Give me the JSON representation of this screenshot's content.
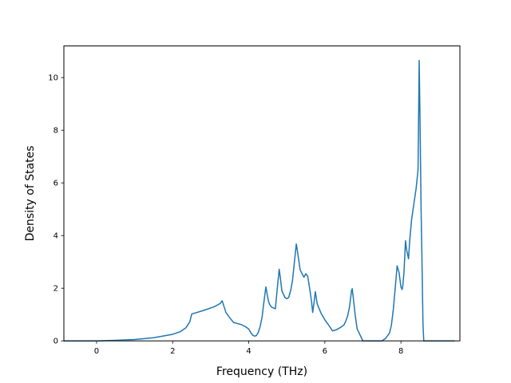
{
  "chart_data": {
    "type": "line",
    "title": "",
    "xlabel": "Frequency (THz)",
    "ylabel": "Density of States",
    "xlim": [
      -0.86,
      9.55
    ],
    "ylim": [
      0,
      11.2
    ],
    "xticks": [
      "0",
      "2",
      "4",
      "6",
      "8"
    ],
    "yticks": [
      "0",
      "2",
      "4",
      "6",
      "8",
      "10"
    ],
    "grid": false,
    "series": [
      {
        "color": "#1f77b4",
        "x": [
          -0.86,
          0.0,
          0.5,
          1.0,
          1.5,
          2.0,
          2.2,
          2.35,
          2.45,
          2.5,
          2.8,
          3.1,
          3.25,
          3.3,
          3.35,
          3.4,
          3.5,
          3.6,
          3.7,
          3.8,
          3.9,
          4.0,
          4.05,
          4.1,
          4.15,
          4.2,
          4.25,
          4.3,
          4.35,
          4.4,
          4.45,
          4.48,
          4.52,
          4.55,
          4.6,
          4.7,
          4.75,
          4.8,
          4.83,
          4.87,
          4.95,
          5.0,
          5.05,
          5.1,
          5.15,
          5.2,
          5.25,
          5.28,
          5.32,
          5.35,
          5.4,
          5.45,
          5.5,
          5.55,
          5.6,
          5.65,
          5.68,
          5.72,
          5.75,
          5.8,
          5.9,
          6.0,
          6.1,
          6.2,
          6.3,
          6.4,
          6.5,
          6.55,
          6.6,
          6.65,
          6.7,
          6.72,
          6.75,
          6.8,
          6.85,
          6.95,
          7.0,
          7.3,
          7.5,
          7.6,
          7.7,
          7.75,
          7.8,
          7.85,
          7.9,
          7.95,
          8.0,
          8.03,
          8.05,
          8.08,
          8.12,
          8.15,
          8.2,
          8.23,
          8.28,
          8.35,
          8.4,
          8.45,
          8.48,
          8.5,
          8.53,
          8.55,
          8.58,
          8.6,
          9.0,
          9.4
        ],
        "y": [
          0.0,
          0.0,
          0.02,
          0.05,
          0.12,
          0.25,
          0.35,
          0.5,
          0.72,
          1.02,
          1.15,
          1.3,
          1.42,
          1.52,
          1.3,
          1.08,
          0.88,
          0.7,
          0.66,
          0.62,
          0.55,
          0.45,
          0.32,
          0.22,
          0.18,
          0.2,
          0.32,
          0.55,
          0.9,
          1.5,
          2.05,
          1.8,
          1.5,
          1.38,
          1.28,
          1.22,
          2.0,
          2.72,
          2.4,
          1.9,
          1.65,
          1.6,
          1.65,
          1.9,
          2.3,
          3.0,
          3.68,
          3.4,
          3.0,
          2.7,
          2.55,
          2.42,
          2.55,
          2.45,
          2.0,
          1.5,
          1.08,
          1.5,
          1.87,
          1.4,
          1.05,
          0.8,
          0.6,
          0.38,
          0.42,
          0.5,
          0.6,
          0.75,
          0.95,
          1.3,
          1.9,
          1.98,
          1.6,
          0.95,
          0.45,
          0.15,
          0.0,
          0.0,
          0.0,
          0.1,
          0.3,
          0.6,
          1.2,
          2.0,
          2.85,
          2.6,
          2.05,
          1.95,
          2.1,
          2.6,
          3.8,
          3.45,
          3.12,
          3.8,
          4.6,
          5.3,
          5.8,
          6.5,
          10.65,
          8.6,
          5.0,
          3.35,
          0.6,
          0.0,
          0.0,
          0.0
        ]
      }
    ]
  }
}
